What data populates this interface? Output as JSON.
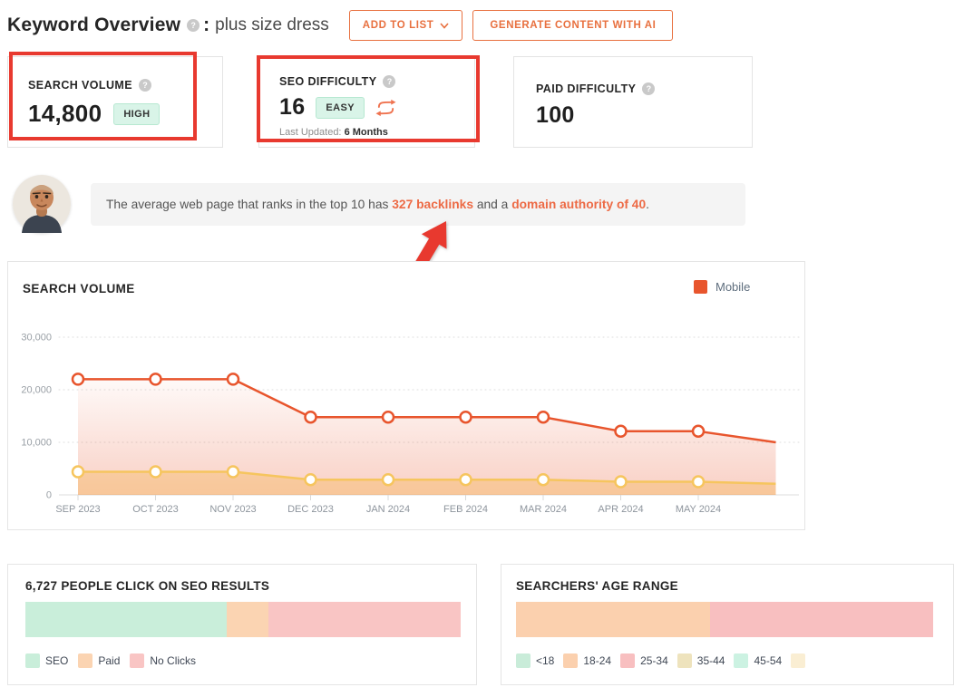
{
  "icons": {
    "help_glyph": "?"
  },
  "colors": {
    "accent_orange": "#e8703f",
    "link_orange": "#ed6a45",
    "annotation_red": "#e8392f",
    "badge_mint_bg": "#d9f4e8",
    "mobile_line": "#e8552d",
    "secondary_line": "#f6c55e"
  },
  "header": {
    "title": "Keyword Overview",
    "separator": ":",
    "keyword": "plus size dress",
    "add_to_list_label": "ADD TO LIST",
    "generate_label": "GENERATE CONTENT WITH AI"
  },
  "metrics": {
    "search_volume": {
      "label": "SEARCH VOLUME",
      "value": "14,800",
      "badge": "HIGH"
    },
    "seo_difficulty": {
      "label": "SEO DIFFICULTY",
      "value": "16",
      "badge": "EASY",
      "last_updated_label": "Last Updated:",
      "last_updated_value": "6 Months"
    },
    "paid_difficulty": {
      "label": "PAID DIFFICULTY",
      "value": "100"
    }
  },
  "insight": {
    "text_before": "The average web page that ranks in the top 10 has ",
    "link_backlinks": "327 backlinks",
    "text_middle": " and a ",
    "link_domain": "domain authority of 40",
    "text_after": "."
  },
  "chart_data": [
    {
      "type": "area",
      "title": "SEARCH VOLUME",
      "categories": [
        "SEP 2023",
        "OCT 2023",
        "NOV 2023",
        "DEC 2023",
        "JAN 2024",
        "FEB 2024",
        "MAR 2024",
        "APR 2024",
        "MAY 2024"
      ],
      "series": [
        {
          "name": "Mobile",
          "color": "#e8552d",
          "values": [
            22000,
            22000,
            22000,
            14800,
            14800,
            14800,
            14800,
            12100,
            12100
          ],
          "edge_value": 10000
        },
        {
          "name": "",
          "color": "#f6c55e",
          "values": [
            4400,
            4400,
            4400,
            2900,
            2900,
            2900,
            2900,
            2500,
            2500
          ],
          "edge_value": 2100
        }
      ],
      "ylim": [
        0,
        30000
      ],
      "yticks": [
        {
          "v": 0,
          "label": "0"
        },
        {
          "v": 10000,
          "label": "10,000"
        },
        {
          "v": 20000,
          "label": "20,000"
        },
        {
          "v": 30000,
          "label": "30,000"
        }
      ],
      "grid": "dashed-horizontal",
      "legend_position": "top-right"
    },
    {
      "type": "stacked-bar",
      "title": "6,727 PEOPLE CLICK ON SEO RESULTS",
      "segments": [
        {
          "label": "SEO",
          "color": "#c9eeda",
          "pct": 46.3
        },
        {
          "label": "Paid",
          "color": "#fbd4b2",
          "pct": 9.6
        },
        {
          "label": "No Clicks",
          "color": "#f9c5c4",
          "pct": 44.1
        }
      ]
    },
    {
      "type": "stacked-bar",
      "title": "SEARCHERS' AGE RANGE",
      "segments": [
        {
          "label": "<18",
          "color": "#c9ecd9",
          "pct": 0
        },
        {
          "label": "18-24",
          "color": "#fbd0ae",
          "pct": 46.5
        },
        {
          "label": "25-34",
          "color": "#f8bfc0",
          "pct": 53.5
        },
        {
          "label": "35-44",
          "color": "#eee3bd",
          "pct": 0
        },
        {
          "label": "45-54",
          "color": "#ccf2e2",
          "pct": 0
        },
        {
          "label": "",
          "color": "#faeed3",
          "pct": 0
        }
      ]
    }
  ]
}
